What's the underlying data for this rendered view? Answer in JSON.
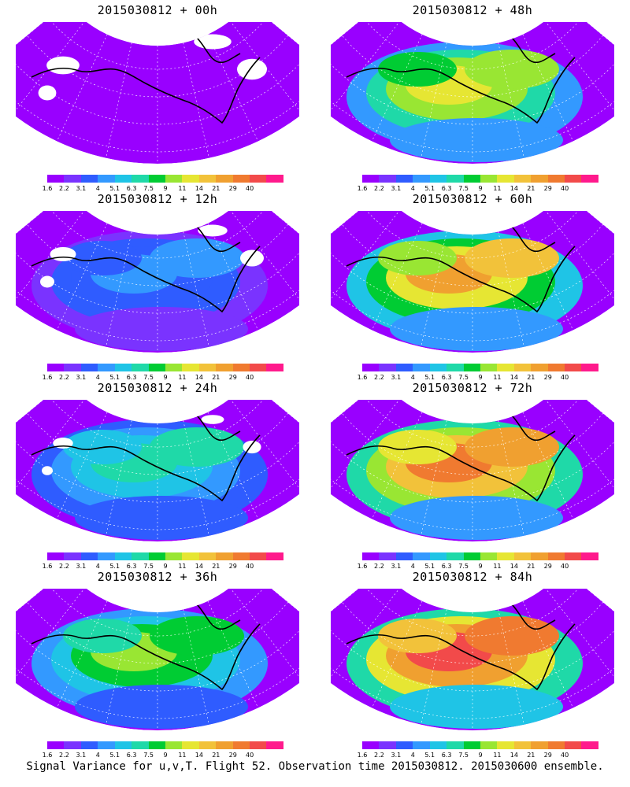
{
  "panels": [
    {
      "title": "2015030812 + 00h",
      "intensity": 0.05
    },
    {
      "title": "2015030812 + 48h",
      "intensity": 0.62
    },
    {
      "title": "2015030812 + 12h",
      "intensity": 0.25
    },
    {
      "title": "2015030812 + 60h",
      "intensity": 0.72
    },
    {
      "title": "2015030812 + 24h",
      "intensity": 0.42
    },
    {
      "title": "2015030812 + 72h",
      "intensity": 0.8
    },
    {
      "title": "2015030812 + 36h",
      "intensity": 0.52
    },
    {
      "title": "2015030812 + 84h",
      "intensity": 0.88
    }
  ],
  "colorbar": {
    "labels": [
      "1.6",
      "2.2",
      "3.1",
      "4",
      "5.1",
      "6.3",
      "7.5",
      "9",
      "11",
      "14",
      "21",
      "29",
      "40"
    ],
    "colors": [
      "#9900ff",
      "#7a33ff",
      "#2f5cff",
      "#3399ff",
      "#1fc4e6",
      "#1fd9a8",
      "#00cc33",
      "#99e633",
      "#e6e633",
      "#f2c23a",
      "#f0a030",
      "#f07a30",
      "#f24a4a",
      "#ff1a8c"
    ]
  },
  "footer": "Signal Variance for u,v,T. Flight 52. Observation time 2015030812. 2015030600 ensemble."
}
